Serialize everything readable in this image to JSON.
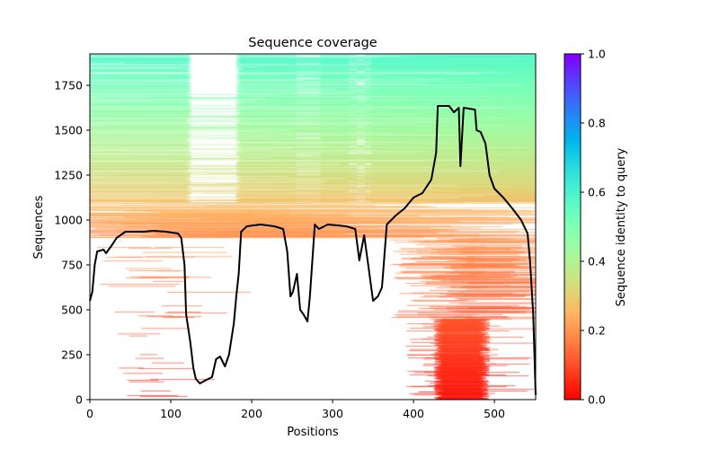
{
  "chart_data": {
    "type": "heatmap",
    "title": "Sequence coverage",
    "xlabel": "Positions",
    "ylabel": "Sequences",
    "xlim": [
      0,
      551
    ],
    "ylim": [
      0,
      1925
    ],
    "xticks": [
      "0",
      "100",
      "200",
      "300",
      "400",
      "500"
    ],
    "yticks": [
      "0",
      "250",
      "500",
      "750",
      "1000",
      "1250",
      "1500",
      "1750"
    ],
    "colorbar": {
      "label": "Sequence identity to query",
      "range": [
        0,
        1
      ],
      "ticks": [
        "0.0",
        "0.2",
        "0.4",
        "0.6",
        "0.8",
        "1.0"
      ],
      "colormap": "rainbow_r"
    },
    "num_sequences": 1920,
    "coverage_line": {
      "color": "#000000",
      "x": [
        0,
        3,
        6,
        9,
        17,
        20,
        28,
        33,
        44,
        67,
        78,
        94,
        109,
        113,
        117,
        119,
        124,
        128,
        131,
        136,
        144,
        151,
        156,
        161,
        167,
        172,
        178,
        181,
        184,
        187,
        194,
        211,
        228,
        239,
        244,
        248,
        251,
        256,
        260,
        264,
        269,
        272,
        278,
        283,
        294,
        317,
        328,
        333,
        339,
        344,
        350,
        356,
        361,
        367,
        378,
        389,
        400,
        411,
        422,
        428,
        430,
        444,
        450,
        456,
        458,
        462,
        476,
        478,
        483,
        489,
        494,
        500,
        511,
        522,
        533,
        541,
        544,
        548,
        551
      ],
      "y": [
        550,
        600,
        750,
        825,
        835,
        815,
        865,
        900,
        935,
        935,
        940,
        935,
        925,
        900,
        750,
        475,
        325,
        175,
        115,
        90,
        110,
        125,
        225,
        240,
        185,
        250,
        425,
        575,
        700,
        935,
        965,
        975,
        965,
        950,
        825,
        575,
        600,
        700,
        500,
        475,
        435,
        575,
        975,
        950,
        975,
        965,
        950,
        775,
        915,
        750,
        550,
        575,
        625,
        975,
        1025,
        1065,
        1125,
        1150,
        1225,
        1375,
        1635,
        1635,
        1600,
        1625,
        1300,
        1625,
        1615,
        1500,
        1490,
        1425,
        1250,
        1175,
        1125,
        1065,
        1000,
        925,
        775,
        475,
        25
      ]
    }
  }
}
